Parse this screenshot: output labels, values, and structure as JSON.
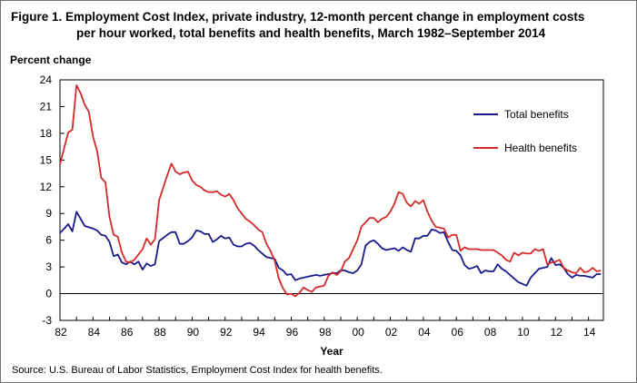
{
  "figure": {
    "title_line1": "Figure 1.  Employment Cost Index, private industry, 12-month percent change in employment costs",
    "title_line2": "per hour  worked, total benefits and health benefits, March 1982–September 2014",
    "source": "Source: U.S. Bureau  of Labor Statistics,  Employment  Cost Index for health  benefits."
  },
  "chart_data": {
    "type": "line",
    "title": "Employment Cost Index, private industry, 12-month percent change in employment costs per hour worked, total benefits and health benefits, March 1982–September 2014",
    "xlabel": "Year",
    "ylabel": "Percent change",
    "xlim": [
      1982,
      2014.9
    ],
    "ylim": [
      -3,
      24
    ],
    "yticks": [
      -3,
      0,
      3,
      6,
      9,
      12,
      15,
      18,
      21,
      24
    ],
    "xticks": [
      1982,
      1984,
      1986,
      1988,
      1990,
      1992,
      1994,
      1996,
      1998,
      2000,
      2002,
      2004,
      2006,
      2008,
      2010,
      2012,
      2014
    ],
    "xtick_labels": [
      "82",
      "84",
      "86",
      "88",
      "90",
      "92",
      "94",
      "96",
      "98",
      "00",
      "02",
      "04",
      "06",
      "08",
      "10",
      "12",
      "14"
    ],
    "grid": false,
    "legend_position": "inside right",
    "series": [
      {
        "name": "Total benefits",
        "color": "#1a1a8c",
        "points": [
          [
            1982.0,
            6.8
          ],
          [
            1982.5,
            7.8
          ],
          [
            1982.75,
            7.0
          ],
          [
            1983.0,
            9.2
          ],
          [
            1983.5,
            7.6
          ],
          [
            1984.0,
            7.3
          ],
          [
            1984.25,
            7.1
          ],
          [
            1984.5,
            6.6
          ],
          [
            1984.75,
            6.5
          ],
          [
            1985.0,
            5.8
          ],
          [
            1985.25,
            4.2
          ],
          [
            1985.5,
            4.4
          ],
          [
            1985.75,
            3.5
          ],
          [
            1986.0,
            3.3
          ],
          [
            1986.25,
            3.6
          ],
          [
            1986.5,
            3.3
          ],
          [
            1986.75,
            3.6
          ],
          [
            1987.0,
            2.7
          ],
          [
            1987.25,
            3.4
          ],
          [
            1987.5,
            3.1
          ],
          [
            1987.75,
            3.3
          ],
          [
            1988.0,
            5.9
          ],
          [
            1988.5,
            6.6
          ],
          [
            1988.75,
            6.9
          ],
          [
            1989.0,
            6.9
          ],
          [
            1989.25,
            5.6
          ],
          [
            1989.5,
            5.6
          ],
          [
            1989.75,
            5.9
          ],
          [
            1990.0,
            6.3
          ],
          [
            1990.25,
            7.1
          ],
          [
            1990.5,
            7.0
          ],
          [
            1990.75,
            6.7
          ],
          [
            1991.0,
            6.7
          ],
          [
            1991.25,
            5.8
          ],
          [
            1991.5,
            6.1
          ],
          [
            1991.75,
            6.5
          ],
          [
            1992.0,
            6.2
          ],
          [
            1992.25,
            6.3
          ],
          [
            1992.5,
            5.5
          ],
          [
            1992.75,
            5.3
          ],
          [
            1993.0,
            5.3
          ],
          [
            1993.25,
            5.6
          ],
          [
            1993.5,
            5.7
          ],
          [
            1993.75,
            5.4
          ],
          [
            1994.0,
            4.9
          ],
          [
            1994.25,
            4.5
          ],
          [
            1994.5,
            4.1
          ],
          [
            1994.75,
            4.0
          ],
          [
            1995.0,
            3.9
          ],
          [
            1995.25,
            2.9
          ],
          [
            1995.5,
            2.6
          ],
          [
            1995.75,
            2.1
          ],
          [
            1996.0,
            2.2
          ],
          [
            1996.25,
            1.5
          ],
          [
            1996.5,
            1.7
          ],
          [
            1996.75,
            1.8
          ],
          [
            1997.0,
            1.9
          ],
          [
            1997.25,
            2.0
          ],
          [
            1997.5,
            2.1
          ],
          [
            1997.75,
            2.0
          ],
          [
            1998.0,
            2.1
          ],
          [
            1998.25,
            2.2
          ],
          [
            1998.5,
            2.3
          ],
          [
            1998.75,
            2.3
          ],
          [
            1999.0,
            2.6
          ],
          [
            1999.25,
            2.6
          ],
          [
            1999.5,
            2.4
          ],
          [
            1999.75,
            2.3
          ],
          [
            2000.0,
            2.6
          ],
          [
            2000.25,
            3.3
          ],
          [
            2000.5,
            5.4
          ],
          [
            2000.75,
            5.8
          ],
          [
            2001.0,
            6.0
          ],
          [
            2001.25,
            5.6
          ],
          [
            2001.5,
            5.1
          ],
          [
            2001.75,
            4.9
          ],
          [
            2002.0,
            5.0
          ],
          [
            2002.25,
            5.1
          ],
          [
            2002.5,
            4.8
          ],
          [
            2002.75,
            5.2
          ],
          [
            2003.0,
            4.9
          ],
          [
            2003.25,
            4.7
          ],
          [
            2003.5,
            6.2
          ],
          [
            2003.75,
            6.2
          ],
          [
            2004.0,
            6.5
          ],
          [
            2004.25,
            6.5
          ],
          [
            2004.5,
            7.2
          ],
          [
            2004.75,
            7.1
          ],
          [
            2005.0,
            6.8
          ],
          [
            2005.25,
            6.9
          ],
          [
            2005.5,
            5.8
          ],
          [
            2005.75,
            4.9
          ],
          [
            2006.0,
            4.8
          ],
          [
            2006.25,
            4.3
          ],
          [
            2006.5,
            3.2
          ],
          [
            2006.75,
            2.8
          ],
          [
            2007.0,
            2.9
          ],
          [
            2007.25,
            3.1
          ],
          [
            2007.5,
            2.3
          ],
          [
            2007.75,
            2.6
          ],
          [
            2008.0,
            2.5
          ],
          [
            2008.25,
            2.5
          ],
          [
            2008.5,
            3.3
          ],
          [
            2008.75,
            2.8
          ],
          [
            2009.0,
            2.5
          ],
          [
            2009.25,
            2.1
          ],
          [
            2009.5,
            1.7
          ],
          [
            2009.75,
            1.3
          ],
          [
            2010.0,
            1.1
          ],
          [
            2010.25,
            0.9
          ],
          [
            2010.5,
            1.8
          ],
          [
            2010.75,
            2.3
          ],
          [
            2011.0,
            2.8
          ],
          [
            2011.25,
            2.9
          ],
          [
            2011.5,
            3.0
          ],
          [
            2011.75,
            4.0
          ],
          [
            2012.0,
            3.2
          ],
          [
            2012.25,
            3.3
          ],
          [
            2012.5,
            2.9
          ],
          [
            2012.75,
            2.2
          ],
          [
            2013.0,
            1.8
          ],
          [
            2013.25,
            2.1
          ],
          [
            2013.5,
            2.0
          ],
          [
            2013.75,
            2.0
          ],
          [
            2014.0,
            1.9
          ],
          [
            2014.25,
            1.8
          ],
          [
            2014.5,
            2.2
          ],
          [
            2014.75,
            2.2
          ]
        ]
      },
      {
        "name": "Health benefits",
        "color": "#d42a2a",
        "points": [
          [
            1982.0,
            14.5
          ],
          [
            1982.5,
            18.1
          ],
          [
            1982.75,
            18.4
          ],
          [
            1983.0,
            23.4
          ],
          [
            1983.25,
            22.5
          ],
          [
            1983.5,
            21.2
          ],
          [
            1983.75,
            20.4
          ],
          [
            1984.0,
            17.6
          ],
          [
            1984.25,
            16.0
          ],
          [
            1984.5,
            13.0
          ],
          [
            1984.75,
            12.5
          ],
          [
            1985.0,
            8.6
          ],
          [
            1985.25,
            6.6
          ],
          [
            1985.5,
            6.4
          ],
          [
            1985.75,
            4.6
          ],
          [
            1986.0,
            3.6
          ],
          [
            1986.25,
            3.5
          ],
          [
            1986.5,
            3.8
          ],
          [
            1986.75,
            4.4
          ],
          [
            1987.0,
            5.0
          ],
          [
            1987.25,
            6.2
          ],
          [
            1987.5,
            5.5
          ],
          [
            1987.75,
            6.1
          ],
          [
            1988.0,
            10.5
          ],
          [
            1988.5,
            13.3
          ],
          [
            1988.75,
            14.6
          ],
          [
            1989.0,
            13.7
          ],
          [
            1989.25,
            13.4
          ],
          [
            1989.5,
            13.6
          ],
          [
            1989.75,
            13.7
          ],
          [
            1990.0,
            12.7
          ],
          [
            1990.25,
            12.2
          ],
          [
            1990.5,
            12.0
          ],
          [
            1990.75,
            11.6
          ],
          [
            1991.0,
            11.4
          ],
          [
            1991.25,
            11.4
          ],
          [
            1991.5,
            11.5
          ],
          [
            1991.75,
            11.1
          ],
          [
            1992.0,
            10.9
          ],
          [
            1992.25,
            11.2
          ],
          [
            1992.5,
            10.5
          ],
          [
            1992.75,
            9.6
          ],
          [
            1993.0,
            9.0
          ],
          [
            1993.25,
            8.4
          ],
          [
            1993.5,
            8.1
          ],
          [
            1993.75,
            7.7
          ],
          [
            1994.0,
            7.2
          ],
          [
            1994.25,
            6.9
          ],
          [
            1994.5,
            5.6
          ],
          [
            1994.75,
            4.8
          ],
          [
            1995.0,
            3.7
          ],
          [
            1995.25,
            1.7
          ],
          [
            1995.5,
            0.6
          ],
          [
            1995.75,
            -0.1
          ],
          [
            1996.0,
            0.0
          ],
          [
            1996.25,
            -0.3
          ],
          [
            1996.5,
            0.1
          ],
          [
            1996.75,
            0.7
          ],
          [
            1997.0,
            0.4
          ],
          [
            1997.25,
            0.2
          ],
          [
            1997.5,
            0.7
          ],
          [
            1997.75,
            0.8
          ],
          [
            1998.0,
            0.9
          ],
          [
            1998.25,
            2.0
          ],
          [
            1998.5,
            2.4
          ],
          [
            1998.75,
            2.1
          ],
          [
            1999.0,
            2.5
          ],
          [
            1999.25,
            3.6
          ],
          [
            1999.5,
            4.0
          ],
          [
            1999.75,
            5.0
          ],
          [
            2000.0,
            6.0
          ],
          [
            2000.25,
            7.5
          ],
          [
            2000.5,
            8.0
          ],
          [
            2000.75,
            8.5
          ],
          [
            2001.0,
            8.5
          ],
          [
            2001.25,
            8.0
          ],
          [
            2001.5,
            8.4
          ],
          [
            2001.75,
            8.6
          ],
          [
            2002.0,
            9.2
          ],
          [
            2002.25,
            10.1
          ],
          [
            2002.5,
            11.4
          ],
          [
            2002.75,
            11.2
          ],
          [
            2003.0,
            10.2
          ],
          [
            2003.25,
            9.8
          ],
          [
            2003.5,
            10.4
          ],
          [
            2003.75,
            10.1
          ],
          [
            2004.0,
            10.5
          ],
          [
            2004.25,
            9.2
          ],
          [
            2004.5,
            8.2
          ],
          [
            2004.75,
            7.5
          ],
          [
            2005.0,
            7.4
          ],
          [
            2005.25,
            7.3
          ],
          [
            2005.5,
            6.3
          ],
          [
            2005.75,
            6.6
          ],
          [
            2006.0,
            6.6
          ],
          [
            2006.25,
            4.8
          ],
          [
            2006.5,
            5.2
          ],
          [
            2006.75,
            5.0
          ],
          [
            2007.0,
            5.0
          ],
          [
            2007.25,
            5.0
          ],
          [
            2007.5,
            4.9
          ],
          [
            2007.75,
            4.9
          ],
          [
            2008.0,
            4.9
          ],
          [
            2008.25,
            4.9
          ],
          [
            2008.5,
            4.6
          ],
          [
            2008.75,
            4.3
          ],
          [
            2009.0,
            3.8
          ],
          [
            2009.25,
            3.6
          ],
          [
            2009.5,
            4.6
          ],
          [
            2009.75,
            4.3
          ],
          [
            2010.0,
            4.6
          ],
          [
            2010.25,
            4.5
          ],
          [
            2010.5,
            4.5
          ],
          [
            2010.75,
            5.0
          ],
          [
            2011.0,
            4.8
          ],
          [
            2011.25,
            5.0
          ],
          [
            2011.5,
            3.3
          ],
          [
            2011.75,
            3.5
          ],
          [
            2012.0,
            3.6
          ],
          [
            2012.25,
            3.8
          ],
          [
            2012.5,
            2.9
          ],
          [
            2012.75,
            2.6
          ],
          [
            2013.0,
            2.4
          ],
          [
            2013.25,
            2.3
          ],
          [
            2013.5,
            2.9
          ],
          [
            2013.75,
            2.4
          ],
          [
            2014.0,
            2.5
          ],
          [
            2014.25,
            2.9
          ],
          [
            2014.5,
            2.5
          ],
          [
            2014.75,
            2.6
          ]
        ]
      }
    ]
  }
}
